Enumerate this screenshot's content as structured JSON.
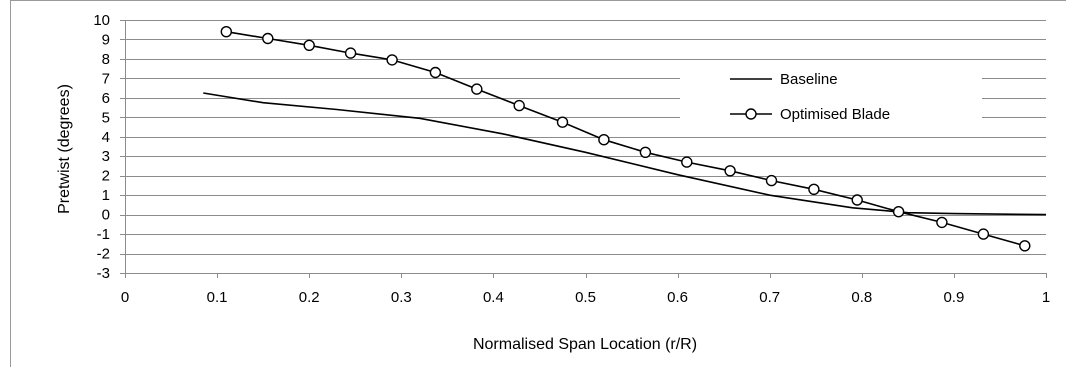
{
  "chart_data": {
    "type": "line",
    "title": "",
    "xlabel": "Normalised Span Location (r/R)",
    "ylabel": "Pretwist (degrees)",
    "xlim": [
      0,
      1
    ],
    "ylim": [
      -3,
      10
    ],
    "x_ticks": [
      "0",
      "0.1",
      "0.2",
      "0.3",
      "0.4",
      "0.5",
      "0.6",
      "0.7",
      "0.8",
      "0.9",
      "1"
    ],
    "y_ticks": [
      "-3",
      "-2",
      "-1",
      "0",
      "1",
      "2",
      "3",
      "4",
      "5",
      "6",
      "7",
      "8",
      "9",
      "10"
    ],
    "grid": "horizontal",
    "legend_position": "upper-right",
    "series": [
      {
        "name": "Baseline",
        "marker": "none",
        "color": "#000000",
        "x": [
          0.085,
          0.15,
          0.23,
          0.32,
          0.41,
          0.5,
          0.6,
          0.7,
          0.79,
          0.85,
          0.9,
          1.0
        ],
        "y": [
          6.25,
          5.75,
          5.4,
          4.95,
          4.15,
          3.2,
          2.05,
          1.0,
          0.35,
          0.1,
          0.05,
          0.0
        ]
      },
      {
        "name": "Optimised Blade",
        "marker": "circle",
        "color": "#000000",
        "x": [
          0.11,
          0.155,
          0.2,
          0.245,
          0.29,
          0.337,
          0.382,
          0.428,
          0.475,
          0.52,
          0.565,
          0.61,
          0.657,
          0.702,
          0.748,
          0.795,
          0.84,
          0.887,
          0.932,
          0.977
        ],
        "y": [
          9.4,
          9.05,
          8.7,
          8.3,
          7.95,
          7.3,
          6.45,
          5.6,
          4.75,
          3.85,
          3.2,
          2.7,
          2.25,
          1.75,
          1.3,
          0.75,
          0.15,
          -0.4,
          -1.0,
          -1.6
        ]
      }
    ]
  }
}
